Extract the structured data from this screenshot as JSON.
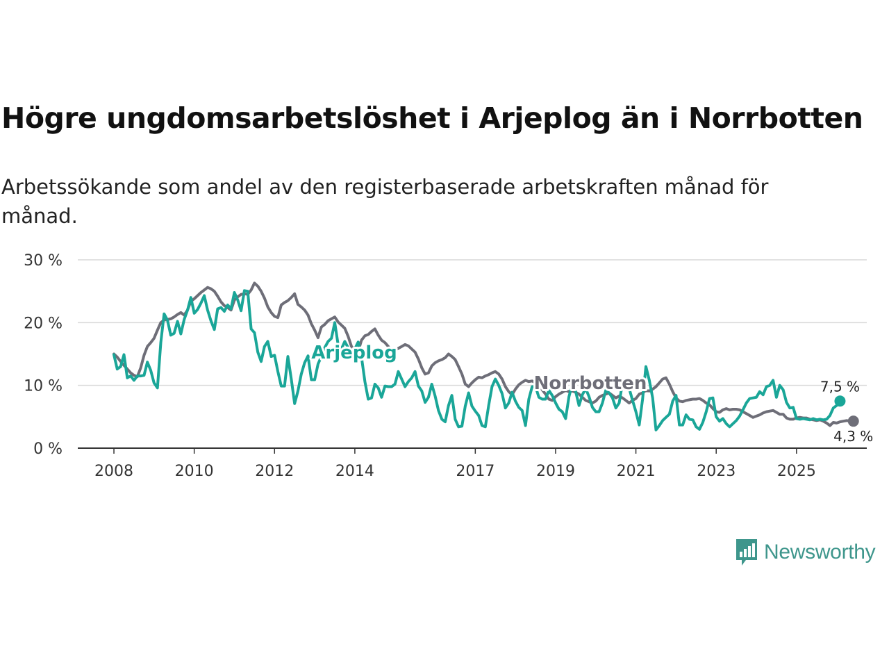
{
  "title": "Högre ungdomsarbetslöshet i Arjeplog än i Norrbotten",
  "subtitle": "Arbetssökande som andel av den registerbaserade arbetskraften månad för månad.",
  "brand": {
    "name": "Newsworthy",
    "color": "#3e968c",
    "icon": "bar-chart-speech-bubble-icon"
  },
  "chart_data": {
    "type": "line",
    "x_start": 2008.0,
    "x_step_months": 1,
    "xlim": [
      2007.1,
      2026.75
    ],
    "ylim": [
      0,
      30
    ],
    "y_ticks": [
      0,
      10,
      20,
      30
    ],
    "y_tick_labels": [
      "0 %",
      "10 %",
      "20 %",
      "30 %"
    ],
    "x_ticks": [
      2008,
      2010,
      2012,
      2014,
      2017,
      2019,
      2021,
      2023,
      2025
    ],
    "x_tick_labels": [
      "2008",
      "2010",
      "2012",
      "2014",
      "2017",
      "2019",
      "2021",
      "2023",
      "2025"
    ],
    "grid": true,
    "series": [
      {
        "name": "Norrbotten",
        "color": "#6e6e78",
        "label": "Norrbotten",
        "end_label": "4,3 %",
        "values": [
          15.0,
          14.5,
          13.8,
          13.2,
          12.6,
          12.0,
          11.6,
          11.4,
          12.8,
          14.8,
          16.2,
          16.8,
          17.5,
          18.8,
          20.0,
          20.4,
          20.5,
          20.6,
          20.9,
          21.3,
          21.6,
          21.2,
          22.0,
          23.4,
          23.8,
          24.3,
          24.8,
          25.2,
          25.6,
          25.4,
          25.0,
          24.2,
          23.3,
          22.7,
          22.4,
          22.0,
          23.6,
          24.1,
          24.5,
          24.6,
          24.5,
          25.2,
          26.3,
          25.8,
          25.0,
          23.9,
          22.5,
          21.6,
          21.0,
          20.8,
          22.8,
          23.2,
          23.5,
          24.0,
          24.6,
          22.9,
          22.5,
          22.0,
          21.2,
          19.8,
          18.8,
          17.6,
          19.3,
          19.7,
          20.3,
          20.6,
          20.9,
          20.1,
          19.6,
          19.1,
          17.8,
          16.2,
          15.6,
          15.4,
          17.2,
          17.9,
          18.1,
          18.6,
          19.0,
          18.0,
          17.2,
          16.8,
          16.2,
          15.2,
          15.6,
          15.9,
          16.2,
          16.5,
          16.3,
          15.8,
          15.3,
          14.2,
          12.8,
          11.8,
          12.0,
          13.1,
          13.6,
          13.9,
          14.1,
          14.4,
          15.0,
          14.6,
          14.1,
          13.0,
          11.8,
          10.2,
          9.8,
          10.4,
          10.9,
          11.3,
          11.2,
          11.5,
          11.7,
          12.0,
          12.2,
          11.8,
          11.0,
          9.8,
          9.0,
          8.5,
          9.4,
          10.1,
          10.5,
          10.8,
          10.6,
          10.7,
          10.4,
          10.1,
          9.3,
          8.6,
          7.8,
          7.6,
          8.2,
          8.6,
          8.9,
          9.2,
          9.0,
          9.1,
          8.9,
          8.6,
          8.1,
          7.6,
          7.4,
          7.2,
          7.5,
          8.1,
          8.4,
          8.6,
          8.8,
          8.4,
          8.0,
          8.3,
          8.0,
          7.6,
          7.2,
          7.6,
          7.9,
          8.6,
          8.8,
          9.2,
          9.1,
          9.4,
          9.8,
          10.4,
          11.0,
          11.2,
          10.2,
          9.0,
          8.0,
          7.5,
          7.4,
          7.6,
          7.7,
          7.8,
          7.8,
          7.9,
          7.6,
          7.2,
          6.9,
          6.3,
          5.8,
          5.7,
          6.1,
          6.3,
          6.1,
          6.2,
          6.2,
          6.1,
          5.8,
          5.5,
          5.2,
          4.9,
          5.1,
          5.3,
          5.6,
          5.8,
          5.9,
          6.0,
          5.7,
          5.4,
          5.4,
          4.8,
          4.6,
          4.6,
          4.8,
          4.9,
          4.8,
          4.8,
          4.6,
          4.5,
          4.4,
          4.5,
          4.3,
          4.0,
          3.6,
          4.1,
          4.0,
          4.2,
          4.3,
          4.4,
          4.3,
          4.3
        ]
      },
      {
        "name": "Arjeplog",
        "color": "#1aa698",
        "label": "Arjeplog",
        "end_label": "7,5 %",
        "values": [
          14.9,
          12.6,
          13.0,
          14.9,
          11.2,
          11.5,
          10.8,
          11.5,
          11.5,
          11.6,
          13.7,
          12.4,
          10.4,
          9.6,
          16.8,
          21.4,
          20.4,
          18.0,
          18.3,
          20.2,
          18.2,
          20.5,
          22.0,
          24.0,
          21.5,
          22.1,
          23.1,
          24.3,
          22.0,
          20.3,
          18.9,
          22.2,
          22.4,
          21.8,
          22.8,
          22.2,
          24.8,
          23.6,
          21.9,
          25.1,
          25.0,
          19.0,
          18.4,
          15.3,
          13.8,
          16.2,
          17.0,
          14.6,
          14.8,
          12.2,
          9.9,
          9.9,
          14.6,
          11.0,
          7.1,
          9.1,
          11.8,
          13.6,
          14.7,
          10.9,
          10.9,
          13.4,
          14.6,
          16.0,
          17.0,
          17.5,
          20.0,
          16.5,
          15.8,
          17.0,
          16.0,
          14.7,
          15.8,
          16.9,
          14.5,
          10.6,
          7.8,
          8.0,
          10.2,
          9.6,
          8.1,
          9.9,
          9.8,
          9.8,
          10.2,
          12.2,
          11.0,
          9.8,
          10.6,
          11.2,
          12.2,
          9.9,
          9.1,
          7.3,
          8.1,
          10.2,
          8.3,
          6.0,
          4.6,
          4.2,
          6.8,
          8.4,
          4.6,
          3.4,
          3.5,
          6.7,
          8.8,
          6.7,
          5.9,
          5.2,
          3.6,
          3.4,
          6.8,
          9.8,
          11.0,
          10.0,
          8.7,
          6.4,
          7.2,
          8.9,
          7.5,
          6.5,
          6.0,
          3.6,
          7.8,
          9.8,
          9.8,
          8.1,
          7.8,
          7.8,
          9.2,
          8.4,
          7.2,
          6.2,
          5.8,
          4.7,
          8.2,
          10.2,
          9.0,
          6.8,
          8.5,
          9.5,
          8.2,
          6.5,
          5.8,
          5.8,
          7.2,
          9.2,
          8.8,
          8.0,
          6.4,
          7.2,
          10.4,
          11.0,
          9.5,
          7.6,
          5.8,
          3.7,
          7.8,
          13.0,
          10.8,
          8.0,
          2.9,
          3.6,
          4.4,
          4.9,
          5.4,
          7.5,
          8.4,
          3.7,
          3.7,
          5.3,
          4.6,
          4.5,
          3.4,
          3.0,
          4.1,
          5.8,
          7.9,
          8.0,
          5.0,
          4.3,
          4.7,
          3.9,
          3.4,
          3.9,
          4.4,
          5.1,
          6.1,
          7.2,
          7.9,
          8.0,
          8.1,
          9.0,
          8.5,
          9.8,
          10.0,
          10.8,
          8.1,
          10.0,
          9.3,
          7.3,
          6.4,
          6.5,
          4.7,
          4.6,
          4.7,
          4.6,
          4.5,
          4.7,
          4.5,
          4.6,
          4.5,
          4.6,
          5.2,
          6.4,
          6.8,
          7.5
        ]
      }
    ]
  }
}
